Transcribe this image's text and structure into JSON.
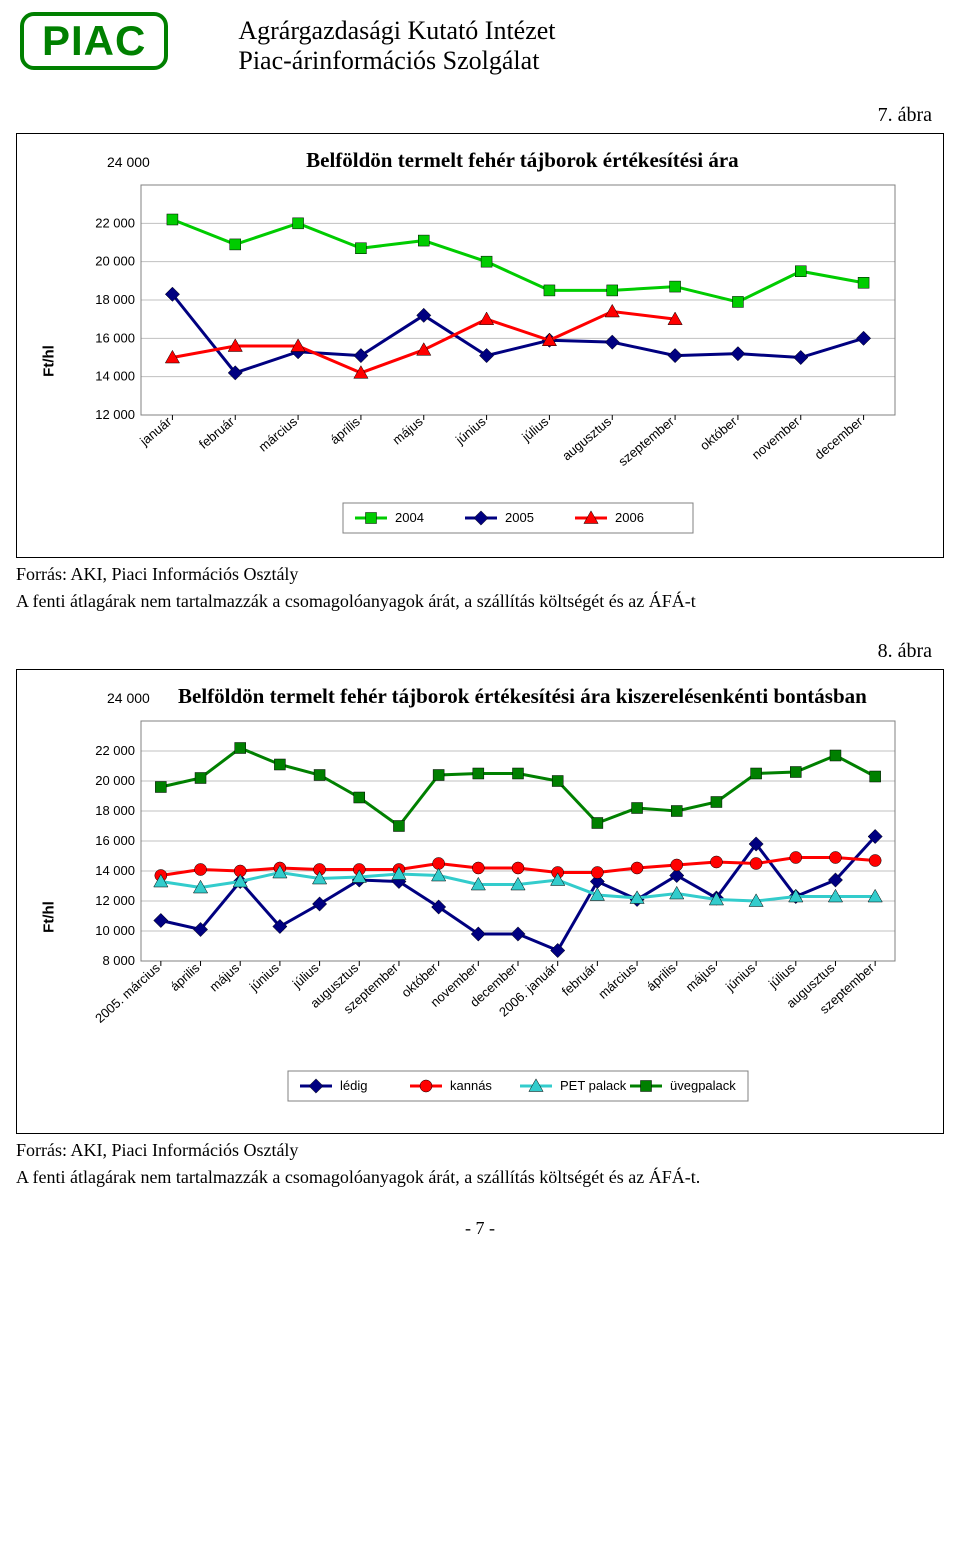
{
  "header": {
    "badge": "PIAC",
    "title1": "Agrárgazdasági Kutató Intézet",
    "title2": "Piac-árinformációs Szolgálat"
  },
  "fig7": {
    "label": "7. ábra",
    "title": "Belföldön termelt fehér tájborok értékesítési ára",
    "ylabel": "Ft/hl",
    "ytick_labels": [
      "12 000",
      "14 000",
      "16 000",
      "18 000",
      "20 000",
      "22 000",
      "24 000"
    ],
    "ytick_values": [
      12000,
      14000,
      16000,
      18000,
      20000,
      22000,
      24000
    ],
    "ylim": [
      12000,
      24000
    ],
    "categories": [
      "január",
      "február",
      "március",
      "április",
      "május",
      "június",
      "július",
      "augusztus",
      "szeptember",
      "október",
      "november",
      "december"
    ],
    "grid_color": "#c0c0c0",
    "plot_border_color": "#808080",
    "series": [
      {
        "name": "2004",
        "color": "#00cc00",
        "width": 3,
        "marker": "square",
        "values": [
          22200,
          20900,
          22000,
          20700,
          21100,
          20000,
          18500,
          18500,
          18700,
          17900,
          19500,
          18900
        ]
      },
      {
        "name": "2005",
        "color": "#000080",
        "width": 3,
        "marker": "diamond",
        "values": [
          18300,
          14200,
          15300,
          15100,
          17200,
          15100,
          15900,
          15800,
          15100,
          15200,
          15000,
          16000
        ]
      },
      {
        "name": "2006",
        "color": "#ff0000",
        "width": 3,
        "marker": "triangle",
        "values": [
          15000,
          15600,
          15600,
          14200,
          15400,
          17000,
          15900,
          17400,
          17000,
          null,
          null,
          null
        ]
      }
    ],
    "legend_labels": [
      "2004",
      "2005",
      "2006"
    ]
  },
  "fig7_foot": {
    "line1": "Forrás: AKI, Piaci Információs Osztály",
    "line2": "A fenti átlagárak nem tartalmazzák a csomagolóanyagok árát, a szállítás költségét  és az ÁFÁ-t"
  },
  "fig8": {
    "label": "8. ábra",
    "title": "Belföldön termelt fehér tájborok értékesítési ára kiszerelésenkénti bontásban",
    "ylabel": "Ft/hl",
    "ytick_labels": [
      "8 000",
      "10 000",
      "12 000",
      "14 000",
      "16 000",
      "18 000",
      "20 000",
      "22 000",
      "24 000"
    ],
    "ytick_values": [
      8000,
      10000,
      12000,
      14000,
      16000,
      18000,
      20000,
      22000,
      24000
    ],
    "ylim": [
      8000,
      24000
    ],
    "categories": [
      "2005. március",
      "április",
      "május",
      "június",
      "július",
      "augusztus",
      "szeptember",
      "október",
      "november",
      "december",
      "2006. január",
      "február",
      "március",
      "április",
      "május",
      "június",
      "július",
      "augusztus",
      "szeptember"
    ],
    "grid_color": "#c0c0c0",
    "plot_border_color": "#808080",
    "series": [
      {
        "name": "lédig",
        "color": "#000080",
        "width": 3,
        "marker": "diamond",
        "values": [
          10700,
          10100,
          13300,
          10300,
          11800,
          13400,
          13300,
          11600,
          9800,
          9800,
          8700,
          13300,
          12100,
          13700,
          12200,
          15800,
          12300,
          13400,
          16300
        ]
      },
      {
        "name": "kannás",
        "color": "#ff0000",
        "width": 3,
        "marker": "circle",
        "values": [
          13700,
          14100,
          14000,
          14200,
          14100,
          14100,
          14100,
          14500,
          14200,
          14200,
          13900,
          13900,
          14200,
          14400,
          14600,
          14500,
          14900,
          14900,
          14700
        ]
      },
      {
        "name": "PET palack",
        "color": "#33cccc",
        "width": 3,
        "marker": "triangle",
        "values": [
          13300,
          12900,
          13300,
          13900,
          13500,
          13600,
          13800,
          13700,
          13100,
          13100,
          13400,
          12400,
          12200,
          12500,
          12100,
          12000,
          12300,
          12300,
          12300
        ]
      },
      {
        "name": "üvegpalack",
        "color": "#008000",
        "width": 3,
        "marker": "square",
        "values": [
          19600,
          20200,
          22200,
          21100,
          20400,
          18900,
          17000,
          20400,
          20500,
          20500,
          20000,
          17200,
          18200,
          18000,
          18600,
          20500,
          20600,
          21700,
          20300
        ]
      }
    ],
    "legend_labels": [
      "lédig",
      "kannás",
      "PET palack",
      "üvegpalack"
    ]
  },
  "fig8_foot": {
    "line1": "Forrás: AKI, Piaci Információs Osztály",
    "line2": "A fenti átlagárak nem tartalmazzák a csomagolóanyagok árát, a szállítás költségét és az ÁFÁ-t."
  },
  "page_footer": "- 7 -"
}
